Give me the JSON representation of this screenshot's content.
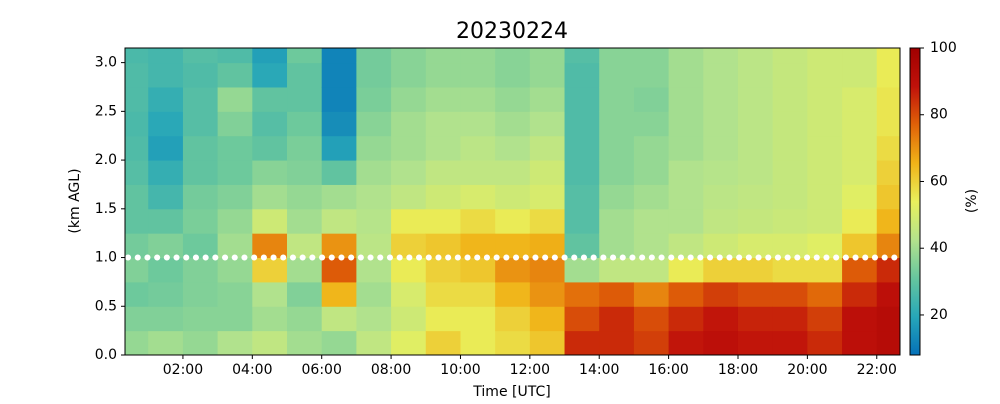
{
  "chart_data": {
    "type": "heatmap",
    "title": "20230224",
    "x_label": "Time [UTC]",
    "y_label": "(km AGL)",
    "colorbar_label": "(%)",
    "x": [
      0.5,
      1.5,
      2.5,
      3.5,
      4.5,
      5.5,
      6.5,
      7.5,
      8.5,
      9.5,
      10.5,
      11.5,
      12.5,
      13.5,
      14.5,
      15.5,
      16.5,
      17.5,
      18.5,
      19.5,
      20.5,
      21.5,
      22.5
    ],
    "y": [
      0.125,
      0.375,
      0.625,
      0.875,
      1.125,
      1.375,
      1.625,
      1.875,
      2.125,
      2.375,
      2.625,
      2.875,
      3.125
    ],
    "z": [
      [
        38,
        35,
        32,
        35,
        33,
        30,
        30,
        28,
        27,
        26,
        27,
        27,
        26
      ],
      [
        40,
        35,
        33,
        32,
        35,
        30,
        25,
        22,
        18,
        20,
        22,
        25,
        25
      ],
      [
        38,
        36,
        35,
        35,
        32,
        34,
        33,
        30,
        30,
        28,
        28,
        27,
        28
      ],
      [
        42,
        36,
        36,
        38,
        40,
        38,
        35,
        32,
        32,
        35,
        38,
        30,
        27
      ],
      [
        45,
        40,
        42,
        60,
        72,
        48,
        40,
        36,
        30,
        28,
        30,
        20,
        18
      ],
      [
        40,
        38,
        35,
        40,
        45,
        40,
        38,
        35,
        34,
        32,
        30,
        30,
        32
      ],
      [
        38,
        45,
        65,
        78,
        70,
        45,
        40,
        30,
        18,
        14,
        12,
        12,
        12
      ],
      [
        45,
        42,
        40,
        42,
        44,
        43,
        42,
        40,
        38,
        36,
        34,
        33,
        33
      ],
      [
        52,
        48,
        50,
        55,
        60,
        55,
        45,
        42,
        40,
        40,
        38,
        36,
        36
      ],
      [
        60,
        55,
        58,
        60,
        62,
        55,
        48,
        45,
        42,
        42,
        40,
        38,
        38
      ],
      [
        55,
        55,
        58,
        62,
        65,
        58,
        50,
        45,
        44,
        42,
        40,
        38,
        38
      ],
      [
        58,
        60,
        65,
        70,
        65,
        55,
        48,
        45,
        42,
        40,
        38,
        36,
        36
      ],
      [
        62,
        65,
        70,
        72,
        66,
        58,
        50,
        48,
        45,
        42,
        40,
        38,
        38
      ],
      [
        85,
        80,
        75,
        40,
        30,
        28,
        28,
        27,
        27,
        27,
        27,
        27,
        28
      ],
      [
        85,
        85,
        78,
        45,
        40,
        40,
        38,
        36,
        36,
        36,
        36,
        36,
        36
      ],
      [
        82,
        80,
        72,
        45,
        42,
        42,
        40,
        38,
        38,
        36,
        35,
        36,
        36
      ],
      [
        88,
        85,
        78,
        55,
        45,
        42,
        42,
        42,
        40,
        40,
        40,
        40,
        40
      ],
      [
        90,
        88,
        82,
        60,
        48,
        45,
        44,
        43,
        42,
        42,
        42,
        42,
        42
      ],
      [
        88,
        86,
        80,
        60,
        50,
        46,
        45,
        44,
        44,
        44,
        44,
        44,
        44
      ],
      [
        88,
        86,
        80,
        58,
        50,
        47,
        46,
        46,
        46,
        46,
        46,
        46,
        46
      ],
      [
        85,
        82,
        76,
        58,
        52,
        48,
        48,
        48,
        48,
        48,
        48,
        48,
        48
      ],
      [
        90,
        90,
        85,
        78,
        62,
        55,
        52,
        50,
        50,
        50,
        50,
        48,
        48
      ],
      [
        92,
        92,
        90,
        85,
        72,
        65,
        62,
        60,
        58,
        56,
        56,
        55,
        55
      ]
    ],
    "xlim": [
      0.33,
      22.67
    ],
    "ylim": [
      0,
      3.15
    ],
    "clim": [
      8,
      100
    ],
    "xticks": [
      {
        "value": 2,
        "label": "02:00"
      },
      {
        "value": 4,
        "label": "04:00"
      },
      {
        "value": 6,
        "label": "06:00"
      },
      {
        "value": 8,
        "label": "08:00"
      },
      {
        "value": 10,
        "label": "10:00"
      },
      {
        "value": 12,
        "label": "12:00"
      },
      {
        "value": 14,
        "label": "14:00"
      },
      {
        "value": 16,
        "label": "16:00"
      },
      {
        "value": 18,
        "label": "18:00"
      },
      {
        "value": 20,
        "label": "20:00"
      },
      {
        "value": 22,
        "label": "22:00"
      }
    ],
    "yticks": [
      {
        "value": 0,
        "label": "0.0"
      },
      0.5,
      {
        "value": 1,
        "label": "1.0"
      },
      1.5,
      {
        "value": 2,
        "label": "2.0"
      },
      2.5,
      {
        "value": 3,
        "label": "3.0"
      }
    ],
    "cticks": [
      20,
      40,
      60,
      80,
      100
    ],
    "colormap": [
      "#0571b9",
      "#27a7b8",
      "#66c69e",
      "#b4e38c",
      "#e9f05c",
      "#f0b318",
      "#e06208",
      "#c0110a",
      "#a00000"
    ],
    "hline": 1.0,
    "hline_color": "#ffffff"
  }
}
